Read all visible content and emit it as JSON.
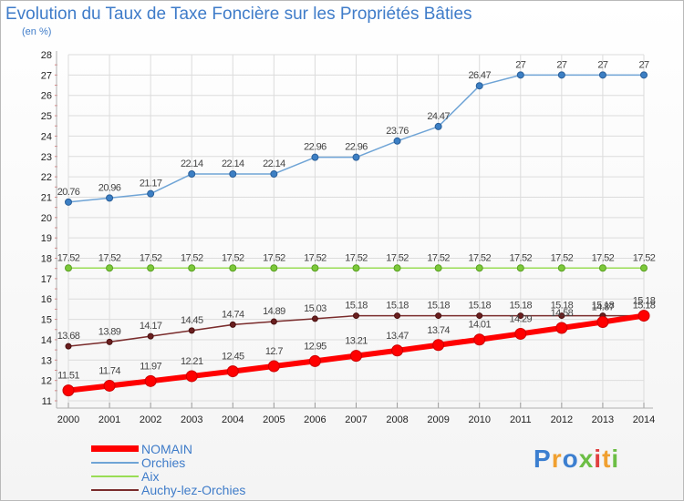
{
  "chart_data": {
    "type": "line",
    "title": "Evolution du Taux de Taxe Foncière sur les Propriétés Bâties",
    "unit_label": "(en %)",
    "x": [
      "2000",
      "2001",
      "2002",
      "2003",
      "2004",
      "2005",
      "2006",
      "2007",
      "2008",
      "2009",
      "2010",
      "2011",
      "2012",
      "2013",
      "2014"
    ],
    "y_ticks": [
      11,
      12,
      13,
      14,
      15,
      16,
      17,
      18,
      19,
      20,
      21,
      22,
      23,
      24,
      25,
      26,
      27,
      28
    ],
    "ylim": [
      11,
      28
    ],
    "grid": true,
    "legend_position": "bottom-left",
    "series": [
      {
        "name": "NOMAIN",
        "color": "#ff0000",
        "values": [
          11.51,
          11.74,
          11.97,
          12.21,
          12.45,
          12.7,
          12.95,
          13.21,
          13.47,
          13.74,
          14.01,
          14.29,
          14.58,
          14.87,
          15.18
        ],
        "labels": [
          "11.51",
          "11.74",
          "11.97",
          "12.21",
          "12.45",
          "12.7",
          "12.95",
          "13.21",
          "13.47",
          "13.74",
          "14.01",
          "14.29",
          "14.58",
          "14.87",
          "15.18"
        ]
      },
      {
        "name": "Orchies",
        "color": "#6fa4d6",
        "values": [
          20.76,
          20.96,
          21.17,
          22.14,
          22.14,
          22.14,
          22.96,
          22.96,
          23.76,
          24.47,
          26.47,
          27,
          27,
          27,
          27
        ],
        "labels": [
          "20.76",
          "20.96",
          "21.17",
          "22.14",
          "22.14",
          "22.14",
          "22.96",
          "22.96",
          "23.76",
          "24.47",
          "26.47",
          "27",
          "27",
          "27",
          "27"
        ]
      },
      {
        "name": "Aix",
        "color": "#99dd55",
        "values": [
          17.52,
          17.52,
          17.52,
          17.52,
          17.52,
          17.52,
          17.52,
          17.52,
          17.52,
          17.52,
          17.52,
          17.52,
          17.52,
          17.52,
          17.52
        ],
        "labels": [
          "17.52",
          "17.52",
          "17.52",
          "17.52",
          "17.52",
          "17.52",
          "17.52",
          "17.52",
          "17.52",
          "17.52",
          "17.52",
          "17.52",
          "17.52",
          "17.52",
          "17.52"
        ]
      },
      {
        "name": "Auchy-lez-Orchies",
        "color": "#7a2c2c",
        "values": [
          13.68,
          13.89,
          14.17,
          14.45,
          14.74,
          14.89,
          15.03,
          15.18,
          15.18,
          15.18,
          15.18,
          15.18,
          15.18,
          15.18,
          15.18
        ],
        "labels": [
          "13.68",
          "13.89",
          "14.17",
          "14.45",
          "14.74",
          "14.89",
          "15.03",
          "15.18",
          "15.18",
          "15.18",
          "15.18",
          "15.18",
          "15.18",
          "15.18",
          "15.18"
        ]
      }
    ]
  },
  "logo": {
    "letters": [
      "P",
      "r",
      "o",
      "x",
      "i",
      "t",
      "i"
    ],
    "colors": [
      "#3c7fd0",
      "#f0a030",
      "#3c7fd0",
      "#6cbe45",
      "#e04040",
      "#f0a030",
      "#6cbe45"
    ]
  }
}
